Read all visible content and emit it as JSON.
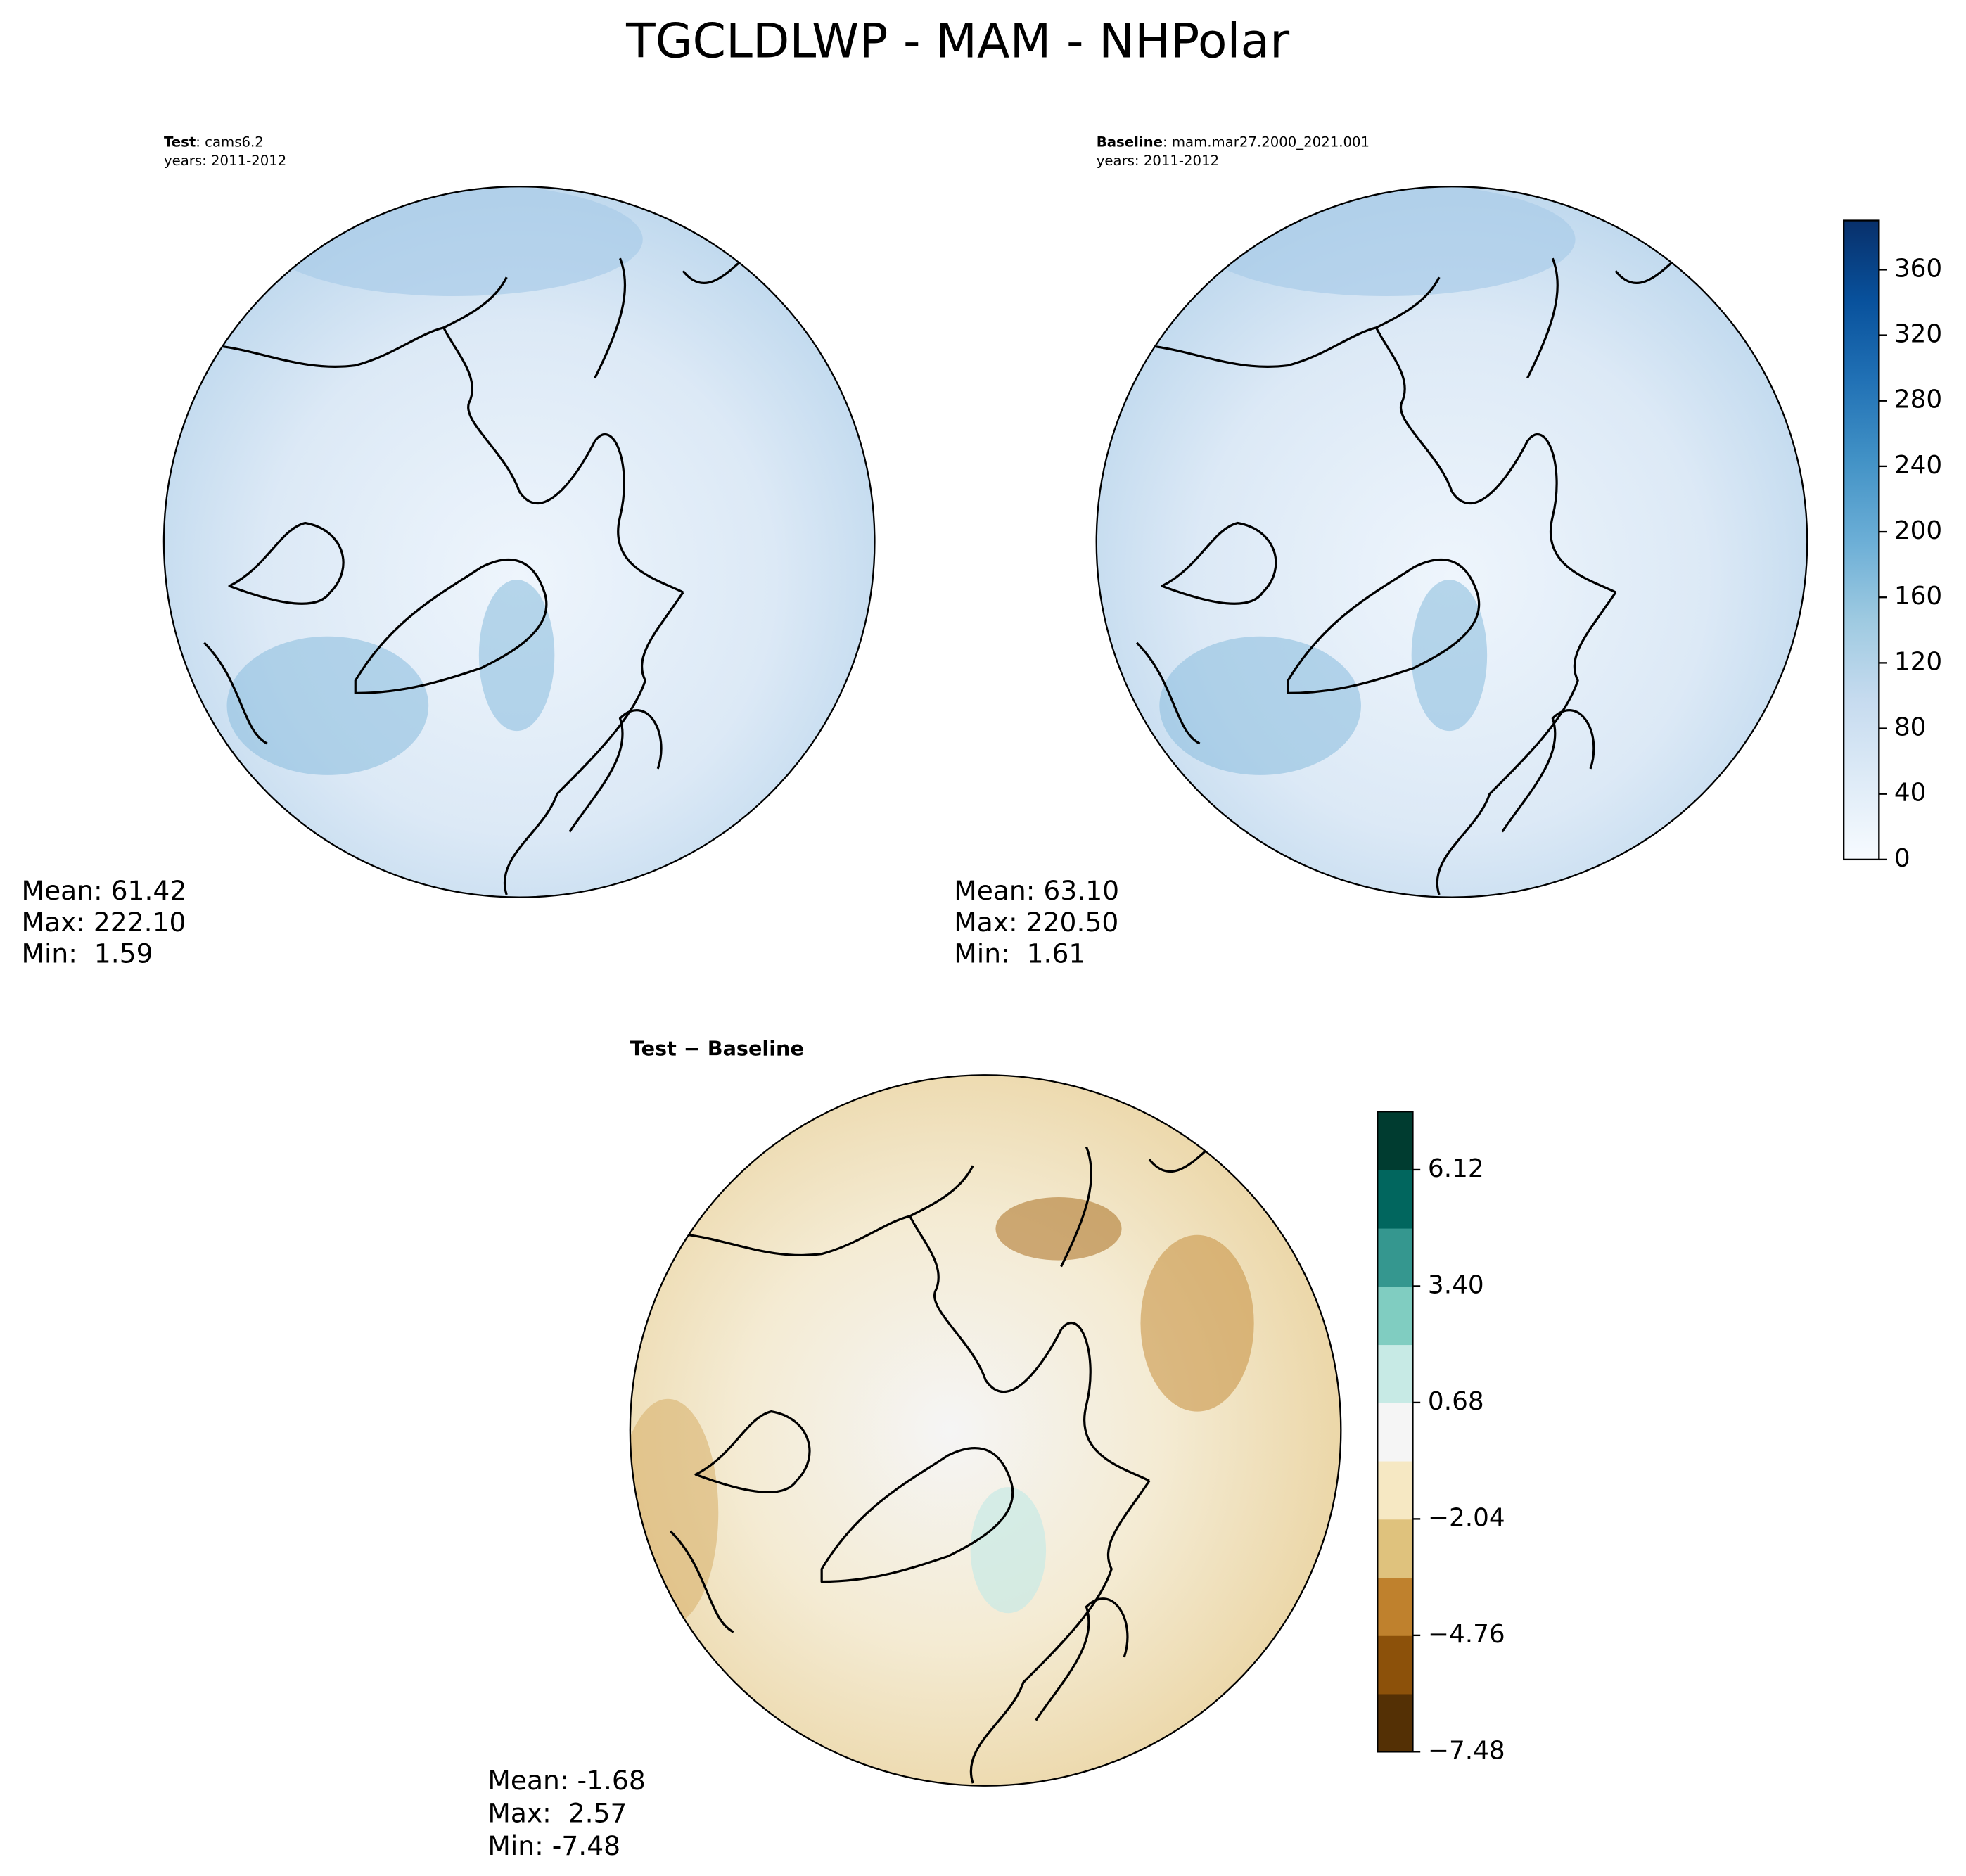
{
  "title": "TGCLDLWP - MAM - NHPolar",
  "panels": [
    {
      "label_bold": "Test",
      "label_rest": ": cams6.2",
      "years": "years: 2011-2012",
      "stats": [
        "Mean: 61.42",
        "Max: 222.10",
        "Min:  1.59"
      ]
    },
    {
      "label_bold": "Baseline",
      "label_rest": ": mam.mar27.2000_2021.001",
      "years": "years: 2011-2012",
      "stats": [
        "Mean: 63.10",
        "Max: 220.50",
        "Min:  1.61"
      ]
    },
    {
      "label_bold": "Test − Baseline",
      "stats": [
        "Mean: -1.68",
        "Max:  2.57",
        "Min: -7.48"
      ]
    }
  ],
  "colorbars": [
    {
      "lim": [
        0,
        390
      ],
      "ticks": [
        0,
        40,
        80,
        120,
        160,
        200,
        240,
        280,
        320,
        360
      ],
      "colors": [
        "#f7fbff",
        "#deebf7",
        "#c6dbef",
        "#9ecae1",
        "#6baed6",
        "#4292c6",
        "#2171b5",
        "#08519c",
        "#08306b"
      ]
    },
    {
      "lim": [
        -7.48,
        7.48
      ],
      "ticks": [
        {
          "value": -7.48,
          "label": "−7.48"
        },
        {
          "value": -4.76,
          "label": "−4.76"
        },
        {
          "value": -2.04,
          "label": "−2.04"
        },
        0.68,
        {
          "value": 3.4,
          "label": "3.40"
        },
        6.12
      ],
      "colors": [
        "#543005",
        "#8c510a",
        "#bf812d",
        "#dfc27d",
        "#f6e8c3",
        "#f5f5f5",
        "#c7eae5",
        "#80cdc1",
        "#35978f",
        "#01665e",
        "#003c30"
      ]
    }
  ]
}
